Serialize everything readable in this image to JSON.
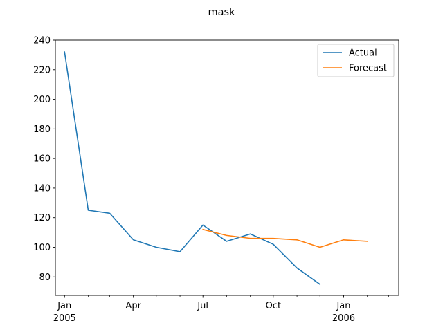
{
  "chart_data": {
    "type": "line",
    "title": "mask",
    "xlabel": "",
    "ylabel": "",
    "x_range": [
      "2004-12-20",
      "2006-03-14"
    ],
    "ylim": [
      67.5,
      240
    ],
    "y_ticks": [
      80,
      100,
      120,
      140,
      160,
      180,
      200,
      220,
      240
    ],
    "x_major_ticks": [
      {
        "date": "2005-01-01",
        "label": "Jan",
        "sublabel": "2005"
      },
      {
        "date": "2005-04-01",
        "label": "Apr",
        "sublabel": ""
      },
      {
        "date": "2005-07-01",
        "label": "Jul",
        "sublabel": ""
      },
      {
        "date": "2005-10-01",
        "label": "Oct",
        "sublabel": ""
      },
      {
        "date": "2006-01-01",
        "label": "Jan",
        "sublabel": "2006"
      }
    ],
    "x_minor_ticks": [
      "2005-02-01",
      "2005-03-01",
      "2005-05-01",
      "2005-06-01",
      "2005-08-01",
      "2005-09-01",
      "2005-11-01",
      "2005-12-01",
      "2006-02-01",
      "2006-03-01"
    ],
    "grid": false,
    "legend_position": "top-right",
    "series": [
      {
        "name": "Actual",
        "color": "#1f77b4",
        "points": [
          {
            "x": "2005-01-01",
            "y": 232
          },
          {
            "x": "2005-02-01",
            "y": 125
          },
          {
            "x": "2005-03-01",
            "y": 123
          },
          {
            "x": "2005-04-01",
            "y": 105
          },
          {
            "x": "2005-05-01",
            "y": 100
          },
          {
            "x": "2005-06-01",
            "y": 97
          },
          {
            "x": "2005-07-01",
            "y": 115
          },
          {
            "x": "2005-08-01",
            "y": 104
          },
          {
            "x": "2005-09-01",
            "y": 109
          },
          {
            "x": "2005-10-01",
            "y": 102
          },
          {
            "x": "2005-11-01",
            "y": 86
          },
          {
            "x": "2005-12-01",
            "y": 75
          }
        ]
      },
      {
        "name": "Forecast",
        "color": "#ff7f0e",
        "points": [
          {
            "x": "2005-07-01",
            "y": 112
          },
          {
            "x": "2005-08-01",
            "y": 108
          },
          {
            "x": "2005-09-01",
            "y": 106
          },
          {
            "x": "2005-10-01",
            "y": 106
          },
          {
            "x": "2005-11-01",
            "y": 105
          },
          {
            "x": "2005-12-01",
            "y": 100
          },
          {
            "x": "2006-01-01",
            "y": 105
          },
          {
            "x": "2006-02-01",
            "y": 104
          }
        ]
      }
    ]
  }
}
